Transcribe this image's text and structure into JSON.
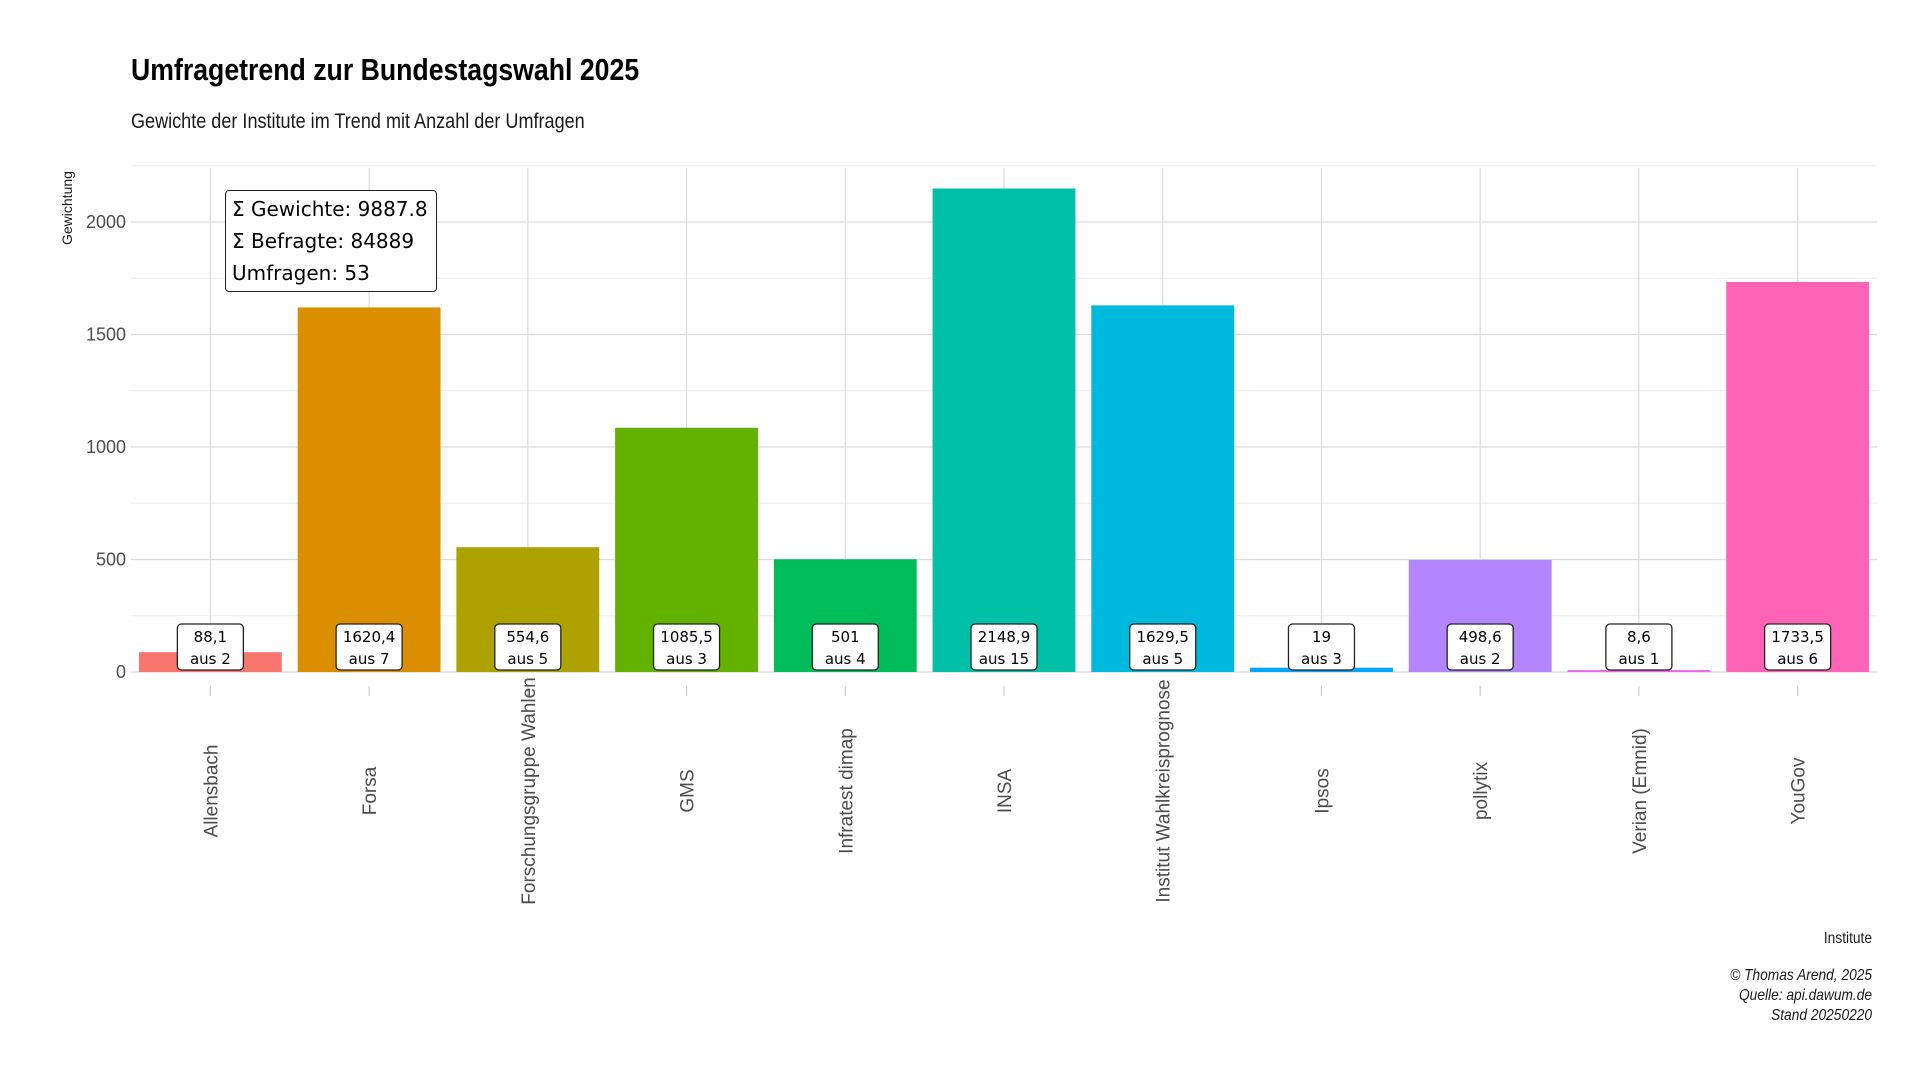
{
  "title": "Umfragetrend zur Bundestagswahl 2025",
  "subtitle": "Gewichte der Institute im Trend mit Anzahl der Umfragen",
  "summary": {
    "gewichte": "Σ Gewichte: 9887.8",
    "befragte": "Σ Befragte: 84889",
    "umfragen": "Umfragen: 53"
  },
  "caption": {
    "author": "© Thomas Arend, 2025",
    "source": "Quelle: api.dawum.de",
    "date": "Stand 20250220"
  },
  "chart_data": {
    "type": "bar",
    "xlabel": "Institute",
    "ylabel": "Gewichtung",
    "ylim": [
      0,
      2250
    ],
    "yticks": [
      0,
      500,
      1000,
      1500,
      2000
    ],
    "grid": true,
    "categories": [
      "Allensbach",
      "Forsa",
      "Forschungsgruppe Wahlen",
      "GMS",
      "Infratest dimap",
      "INSA",
      "Institut Wahlkreisprognose",
      "Ipsos",
      "pollytix",
      "Verian (Emnid)",
      "YouGov"
    ],
    "values": [
      88.1,
      1620.4,
      554.6,
      1085.5,
      501,
      2148.9,
      1629.5,
      19,
      498.6,
      8.6,
      1733.5
    ],
    "value_labels": [
      "88,1",
      "1620,4",
      "554,6",
      "1085,5",
      "501",
      "2148,9",
      "1629,5",
      "19",
      "498,6",
      "8,6",
      "1733,5"
    ],
    "count_labels": [
      "aus 2",
      "aus 7",
      "aus 5",
      "aus 3",
      "aus 4",
      "aus 15",
      "aus 5",
      "aus 3",
      "aus 2",
      "aus 1",
      "aus 6"
    ],
    "colors": [
      "#F8766D",
      "#DB8E00",
      "#AEA200",
      "#64B200",
      "#00BD5C",
      "#00C1A7",
      "#00BADE",
      "#00A6FF",
      "#B385FF",
      "#EF67EB",
      "#FF63B6"
    ]
  }
}
